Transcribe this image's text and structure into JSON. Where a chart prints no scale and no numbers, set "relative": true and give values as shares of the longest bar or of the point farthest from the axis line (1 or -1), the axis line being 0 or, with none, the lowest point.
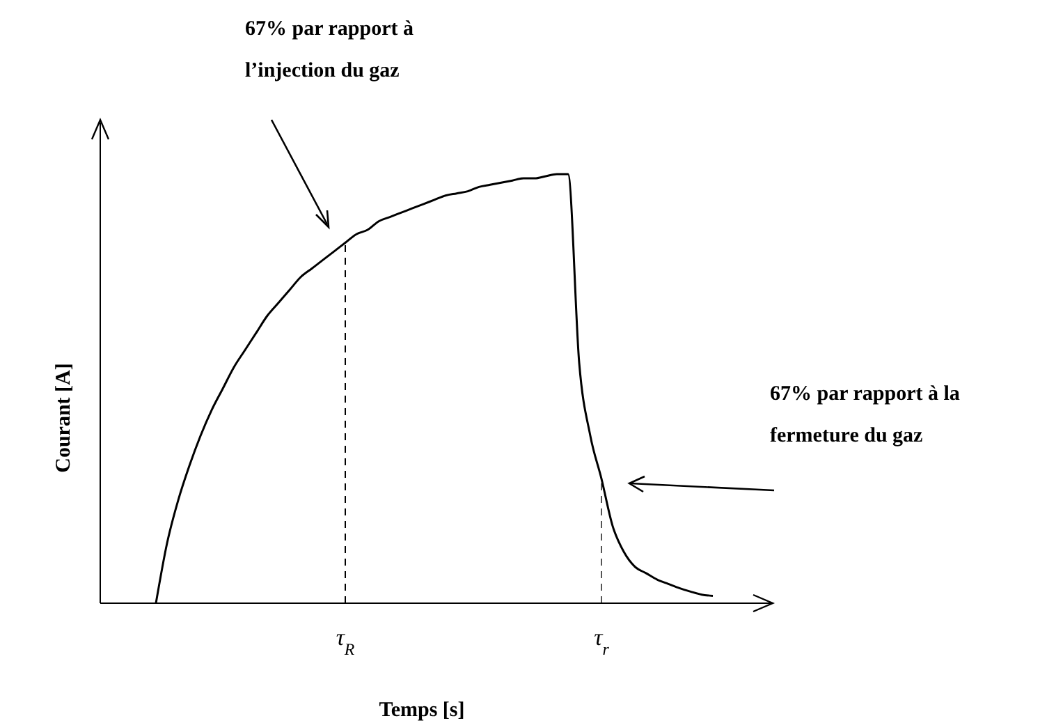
{
  "chart_data": {
    "type": "line",
    "relative": true,
    "xlabel": "Temps [s]",
    "ylabel": "Courant [A]",
    "marker": "none",
    "line_style": "solid",
    "categories": [
      null,
      null,
      null,
      null,
      null,
      null,
      null,
      null,
      null,
      null,
      null,
      null,
      null,
      null,
      null,
      null,
      null,
      "τ$_{R}$",
      null,
      null,
      null,
      null,
      null,
      null,
      null,
      null,
      null,
      null,
      null,
      null,
      null,
      null,
      null,
      null,
      null,
      null,
      null,
      null,
      null,
      null,
      "τ$_{r}$",
      null,
      null,
      null,
      null,
      null,
      null,
      null,
      null,
      null,
      null
    ],
    "series": [
      {
        "color": "#000000",
        "values": [
          0,
          0.14,
          0.24,
          0.32,
          0.39,
          0.45,
          0.5,
          0.55,
          0.59,
          0.63,
          0.67,
          0.7,
          0.73,
          0.76,
          0.78,
          0.8,
          0.82,
          0.84,
          0.86,
          0.87,
          0.89,
          0.9,
          0.91,
          0.92,
          0.93,
          0.94,
          0.95,
          0.955,
          0.96,
          0.97,
          0.975,
          0.98,
          0.985,
          0.99,
          0.99,
          0.995,
          1,
          1,
          0.56,
          0.39,
          0.29,
          0.18,
          0.12,
          0.085,
          0.07,
          0.055,
          0.045,
          0.035,
          0.027,
          0.02,
          0.017
        ]
      }
    ],
    "ref_lines": [
      {
        "axis": "x",
        "value": "τ$_{R}$",
        "line_style": "dashed",
        "color": "#000000"
      },
      {
        "axis": "x",
        "value": "τ$_{r}$",
        "line_style": "dashed",
        "color": "#555555"
      }
    ],
    "annotations": [
      "67% par rapport à l’injection du gaz",
      "67% par rapport à la fermeture du gaz"
    ]
  }
}
